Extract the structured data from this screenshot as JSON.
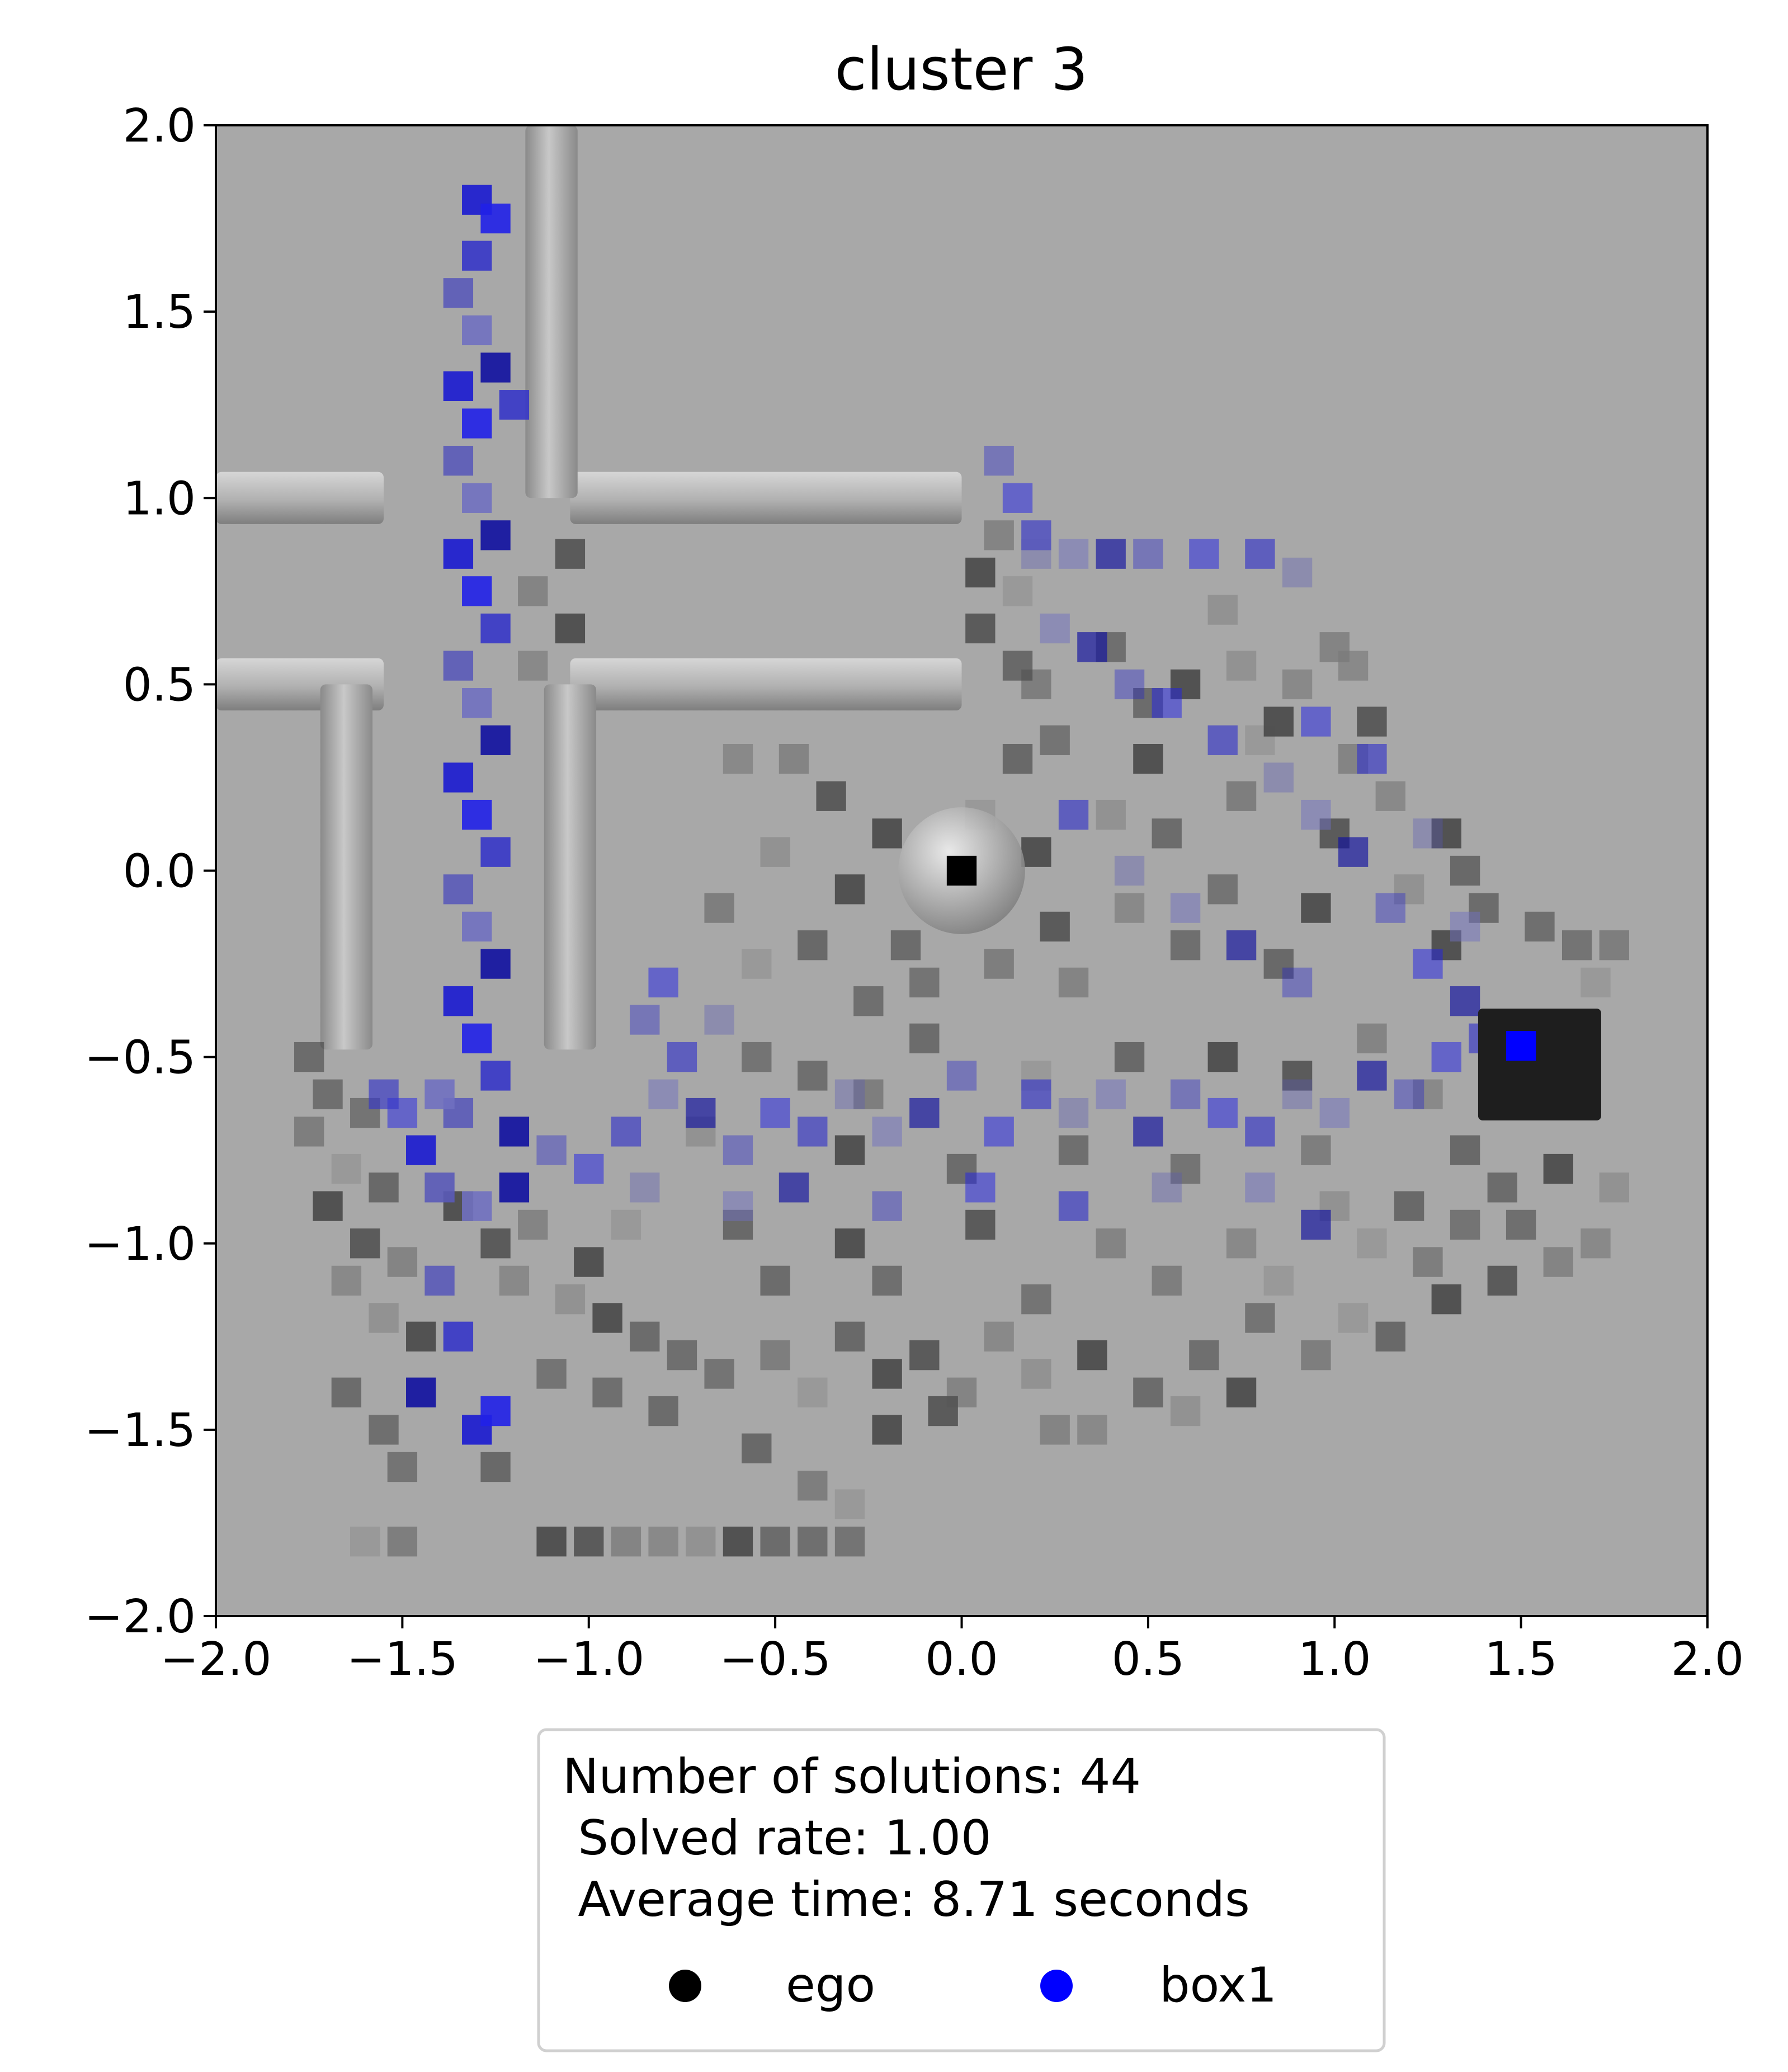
{
  "chart_data": {
    "type": "heatmap",
    "title": "cluster 3",
    "xlabel": "",
    "ylabel": "",
    "xlim": [
      -2.0,
      2.0
    ],
    "ylim": [
      -2.0,
      2.0
    ],
    "x_ticks": [
      "−2.0",
      "−1.5",
      "−1.0",
      "−0.5",
      "0.0",
      "0.5",
      "1.0",
      "1.5",
      "2.0"
    ],
    "y_ticks": [
      "2.0",
      "1.5",
      "1.0",
      "0.5",
      "0.0",
      "−0.5",
      "−1.0",
      "−1.5",
      "−2.0"
    ],
    "grid": false,
    "legend_position": "below",
    "legend": {
      "lines": [
        "Number of solutions: 44",
        " Solved rate: 1.00",
        " Average time: 8.71 seconds"
      ],
      "entries": [
        {
          "name": "ego",
          "color": "#000000"
        },
        {
          "name": "box1",
          "color": "#0000ff"
        }
      ]
    },
    "background": {
      "floor_color": "#a8a8a8",
      "walls": [
        {
          "x": [
            -2.0,
            -1.55
          ],
          "y": [
            1.0,
            1.0
          ]
        },
        {
          "x": [
            -1.05,
            0.0
          ],
          "y": [
            1.0,
            1.0
          ]
        },
        {
          "x": [
            -1.1,
            -1.1
          ],
          "y": [
            1.0,
            2.0
          ]
        },
        {
          "x": [
            -2.0,
            -1.55
          ],
          "y": [
            0.5,
            0.5
          ]
        },
        {
          "x": [
            -1.05,
            0.0
          ],
          "y": [
            0.5,
            0.5
          ]
        },
        {
          "x": [
            -1.65,
            -1.65
          ],
          "y": [
            0.5,
            -0.48
          ]
        },
        {
          "x": [
            -1.05,
            -1.05
          ],
          "y": [
            0.5,
            -0.48
          ]
        }
      ],
      "ego": {
        "x": 0.0,
        "y": 0.0,
        "r": 0.17
      },
      "box1": {
        "x": 1.55,
        "y": -0.52,
        "w": 0.33,
        "h": 0.3
      }
    },
    "ego_trail_cells": [
      [
        -1.75,
        -0.5
      ],
      [
        -1.7,
        -0.6
      ],
      [
        -1.6,
        -0.65
      ],
      [
        -1.75,
        -0.7
      ],
      [
        -1.65,
        -0.8
      ],
      [
        -1.55,
        -0.85
      ],
      [
        -1.7,
        -0.9
      ],
      [
        -1.6,
        -1.0
      ],
      [
        -1.5,
        -1.05
      ],
      [
        -1.65,
        -1.1
      ],
      [
        -1.55,
        -1.2
      ],
      [
        -1.45,
        -1.25
      ],
      [
        -1.65,
        -1.4
      ],
      [
        -1.55,
        -1.5
      ],
      [
        -1.5,
        -1.6
      ],
      [
        -1.5,
        -1.8
      ],
      [
        -1.6,
        -1.8
      ],
      [
        -1.25,
        -1.6
      ],
      [
        -1.35,
        -0.9
      ],
      [
        -1.25,
        -1.0
      ],
      [
        -1.15,
        -0.95
      ],
      [
        -1.2,
        -1.1
      ],
      [
        -1.05,
        -1.15
      ],
      [
        -0.95,
        -1.2
      ],
      [
        -0.85,
        -1.25
      ],
      [
        -0.75,
        -1.3
      ],
      [
        -0.65,
        -1.35
      ],
      [
        -0.5,
        -1.3
      ],
      [
        -0.4,
        -1.4
      ],
      [
        -0.3,
        -1.25
      ],
      [
        -0.2,
        -1.35
      ],
      [
        -0.1,
        -1.3
      ],
      [
        0.0,
        -1.4
      ],
      [
        0.1,
        -1.25
      ],
      [
        0.2,
        -1.35
      ],
      [
        0.35,
        -1.3
      ],
      [
        0.5,
        -1.4
      ],
      [
        0.65,
        -1.3
      ],
      [
        0.8,
        -1.2
      ],
      [
        0.95,
        -1.3
      ],
      [
        1.05,
        -1.2
      ],
      [
        1.15,
        -1.25
      ],
      [
        1.3,
        -1.15
      ],
      [
        1.45,
        -1.1
      ],
      [
        1.6,
        -1.05
      ],
      [
        1.7,
        -1.0
      ],
      [
        1.75,
        -0.85
      ],
      [
        1.6,
        -0.8
      ],
      [
        1.45,
        -0.85
      ],
      [
        1.5,
        -0.95
      ],
      [
        1.35,
        -0.95
      ],
      [
        1.25,
        -1.05
      ],
      [
        1.1,
        -1.0
      ],
      [
        1.2,
        -0.9
      ],
      [
        -1.1,
        -1.8
      ],
      [
        -1.0,
        -1.8
      ],
      [
        -0.9,
        -1.8
      ],
      [
        -0.8,
        -1.8
      ],
      [
        -0.7,
        -1.8
      ],
      [
        -0.6,
        -1.8
      ],
      [
        -0.5,
        -1.8
      ],
      [
        -0.4,
        -1.8
      ],
      [
        -0.3,
        -1.8
      ],
      [
        -0.4,
        -1.65
      ],
      [
        -0.3,
        -1.7
      ],
      [
        -0.55,
        -1.55
      ],
      [
        -0.2,
        -1.5
      ],
      [
        -0.05,
        -1.45
      ],
      [
        0.25,
        -1.5
      ],
      [
        0.35,
        -1.5
      ],
      [
        0.6,
        -1.45
      ],
      [
        0.75,
        -1.4
      ],
      [
        -0.8,
        -1.45
      ],
      [
        -0.95,
        -1.4
      ],
      [
        -1.1,
        -1.35
      ],
      [
        -0.65,
        -0.1
      ],
      [
        -0.55,
        -0.25
      ],
      [
        -0.4,
        -0.2
      ],
      [
        -0.3,
        -0.05
      ],
      [
        -0.35,
        0.2
      ],
      [
        -0.45,
        0.3
      ],
      [
        -0.6,
        0.3
      ],
      [
        -0.5,
        0.05
      ],
      [
        -0.2,
        0.1
      ],
      [
        -0.15,
        -0.2
      ],
      [
        -0.25,
        -0.35
      ],
      [
        -0.1,
        -0.3
      ],
      [
        0.1,
        -0.25
      ],
      [
        0.05,
        0.15
      ],
      [
        0.15,
        0.3
      ],
      [
        0.2,
        0.05
      ],
      [
        0.25,
        -0.15
      ],
      [
        0.3,
        -0.3
      ],
      [
        0.45,
        -0.1
      ],
      [
        0.4,
        0.15
      ],
      [
        0.5,
        0.3
      ],
      [
        0.55,
        0.1
      ],
      [
        0.6,
        -0.2
      ],
      [
        0.7,
        -0.05
      ],
      [
        0.75,
        0.2
      ],
      [
        0.8,
        0.35
      ],
      [
        0.85,
        -0.25
      ],
      [
        0.95,
        -0.1
      ],
      [
        1.0,
        0.1
      ],
      [
        1.05,
        0.3
      ],
      [
        1.15,
        0.2
      ],
      [
        1.2,
        -0.05
      ],
      [
        1.3,
        -0.2
      ],
      [
        1.4,
        -0.1
      ],
      [
        1.55,
        -0.15
      ],
      [
        1.65,
        -0.2
      ],
      [
        1.75,
        -0.2
      ],
      [
        1.7,
        -0.3
      ],
      [
        1.35,
        0.0
      ],
      [
        1.3,
        0.1
      ],
      [
        1.1,
        0.4
      ],
      [
        1.0,
        0.6
      ],
      [
        0.9,
        0.5
      ],
      [
        0.75,
        0.55
      ],
      [
        0.85,
        0.4
      ],
      [
        0.5,
        0.45
      ],
      [
        0.4,
        0.6
      ],
      [
        0.25,
        0.35
      ],
      [
        0.2,
        0.5
      ],
      [
        0.15,
        0.75
      ],
      [
        0.15,
        0.55
      ],
      [
        0.05,
        0.8
      ],
      [
        0.05,
        0.65
      ],
      [
        0.1,
        0.9
      ],
      [
        1.05,
        0.55
      ],
      [
        0.7,
        0.7
      ],
      [
        0.6,
        0.5
      ],
      [
        -0.1,
        -0.45
      ],
      [
        -0.4,
        -0.55
      ],
      [
        -0.55,
        -0.5
      ],
      [
        -0.25,
        -0.6
      ],
      [
        0.2,
        -0.55
      ],
      [
        0.45,
        -0.5
      ],
      [
        0.7,
        -0.5
      ],
      [
        0.9,
        -0.55
      ],
      [
        1.1,
        -0.45
      ],
      [
        1.25,
        -0.6
      ],
      [
        -0.7,
        -0.7
      ],
      [
        -0.3,
        -0.75
      ],
      [
        0.0,
        -0.8
      ],
      [
        0.3,
        -0.75
      ],
      [
        0.6,
        -0.8
      ],
      [
        0.95,
        -0.75
      ],
      [
        -0.9,
        -0.95
      ],
      [
        -0.6,
        -0.95
      ],
      [
        -0.3,
        -1.0
      ],
      [
        0.05,
        -0.95
      ],
      [
        0.4,
        -1.0
      ],
      [
        0.75,
        -1.0
      ],
      [
        1.0,
        -0.9
      ],
      [
        -1.0,
        -1.05
      ],
      [
        -0.5,
        -1.1
      ],
      [
        -0.2,
        -1.1
      ],
      [
        0.2,
        -1.15
      ],
      [
        0.55,
        -1.1
      ],
      [
        0.85,
        -1.1
      ],
      [
        1.35,
        -0.75
      ],
      [
        -1.05,
        0.65
      ],
      [
        -1.05,
        0.85
      ],
      [
        -1.15,
        0.75
      ],
      [
        -1.15,
        0.55
      ]
    ],
    "box1_trail_cells": [
      [
        -1.3,
        1.8
      ],
      [
        -1.25,
        1.75
      ],
      [
        -1.3,
        1.65
      ],
      [
        -1.35,
        1.55
      ],
      [
        -1.3,
        1.45
      ],
      [
        -1.25,
        1.35
      ],
      [
        -1.35,
        1.3
      ],
      [
        -1.3,
        1.2
      ],
      [
        -1.2,
        1.25
      ],
      [
        -1.35,
        1.1
      ],
      [
        -1.3,
        1.0
      ],
      [
        -1.25,
        0.9
      ],
      [
        -1.35,
        0.85
      ],
      [
        -1.3,
        0.75
      ],
      [
        -1.25,
        0.65
      ],
      [
        -1.35,
        0.55
      ],
      [
        -1.3,
        0.45
      ],
      [
        -1.25,
        0.35
      ],
      [
        -1.35,
        0.25
      ],
      [
        -1.3,
        0.15
      ],
      [
        -1.25,
        0.05
      ],
      [
        -1.35,
        -0.05
      ],
      [
        -1.3,
        -0.15
      ],
      [
        -1.25,
        -0.25
      ],
      [
        -1.35,
        -0.35
      ],
      [
        -1.3,
        -0.45
      ],
      [
        -1.25,
        -0.55
      ],
      [
        -1.35,
        -0.65
      ],
      [
        -1.4,
        -0.6
      ],
      [
        -1.2,
        -0.7
      ],
      [
        -1.45,
        -0.75
      ],
      [
        -1.5,
        -0.65
      ],
      [
        -1.55,
        -0.6
      ],
      [
        -1.4,
        -0.85
      ],
      [
        -1.3,
        -0.9
      ],
      [
        -1.2,
        -0.85
      ],
      [
        -1.1,
        -0.75
      ],
      [
        -1.0,
        -0.8
      ],
      [
        -0.9,
        -0.7
      ],
      [
        -0.85,
        -0.85
      ],
      [
        -0.8,
        -0.6
      ],
      [
        -0.7,
        -0.65
      ],
      [
        -0.6,
        -0.75
      ],
      [
        -0.5,
        -0.65
      ],
      [
        -0.4,
        -0.7
      ],
      [
        -0.3,
        -0.6
      ],
      [
        -0.2,
        -0.7
      ],
      [
        -0.1,
        -0.65
      ],
      [
        0.0,
        -0.55
      ],
      [
        0.1,
        -0.7
      ],
      [
        0.2,
        -0.6
      ],
      [
        0.3,
        -0.65
      ],
      [
        0.4,
        -0.6
      ],
      [
        0.5,
        -0.7
      ],
      [
        0.6,
        -0.6
      ],
      [
        0.7,
        -0.65
      ],
      [
        0.8,
        -0.7
      ],
      [
        0.9,
        -0.6
      ],
      [
        1.0,
        -0.65
      ],
      [
        1.1,
        -0.55
      ],
      [
        1.2,
        -0.6
      ],
      [
        1.3,
        -0.5
      ],
      [
        1.4,
        -0.45
      ],
      [
        1.5,
        -0.47
      ],
      [
        1.45,
        -0.55
      ],
      [
        1.35,
        -0.35
      ],
      [
        -0.85,
        -0.4
      ],
      [
        -0.8,
        -0.3
      ],
      [
        -0.75,
        -0.5
      ],
      [
        -0.65,
        -0.4
      ],
      [
        -0.6,
        -0.9
      ],
      [
        -0.45,
        -0.85
      ],
      [
        -0.2,
        -0.9
      ],
      [
        0.05,
        -0.85
      ],
      [
        0.3,
        -0.9
      ],
      [
        0.55,
        -0.85
      ],
      [
        0.8,
        -0.85
      ],
      [
        0.95,
        -0.95
      ],
      [
        0.1,
        1.1
      ],
      [
        0.15,
        1.0
      ],
      [
        0.2,
        0.9
      ],
      [
        0.2,
        0.85
      ],
      [
        0.3,
        0.85
      ],
      [
        0.4,
        0.85
      ],
      [
        0.5,
        0.85
      ],
      [
        0.65,
        0.85
      ],
      [
        0.8,
        0.85
      ],
      [
        0.9,
        0.8
      ],
      [
        0.25,
        0.65
      ],
      [
        0.35,
        0.6
      ],
      [
        0.45,
        0.5
      ],
      [
        0.55,
        0.45
      ],
      [
        0.7,
        0.35
      ],
      [
        0.85,
        0.25
      ],
      [
        0.95,
        0.15
      ],
      [
        1.05,
        0.05
      ],
      [
        1.15,
        -0.1
      ],
      [
        1.25,
        -0.25
      ],
      [
        0.3,
        0.15
      ],
      [
        0.45,
        0.0
      ],
      [
        0.6,
        -0.1
      ],
      [
        0.75,
        -0.2
      ],
      [
        0.9,
        -0.3
      ],
      [
        0.95,
        0.4
      ],
      [
        1.1,
        0.3
      ],
      [
        1.25,
        0.1
      ],
      [
        1.35,
        -0.15
      ],
      [
        -1.45,
        -1.4
      ],
      [
        -1.3,
        -1.5
      ],
      [
        -1.25,
        -1.45
      ],
      [
        -1.35,
        -1.25
      ],
      [
        -1.4,
        -1.1
      ]
    ]
  }
}
